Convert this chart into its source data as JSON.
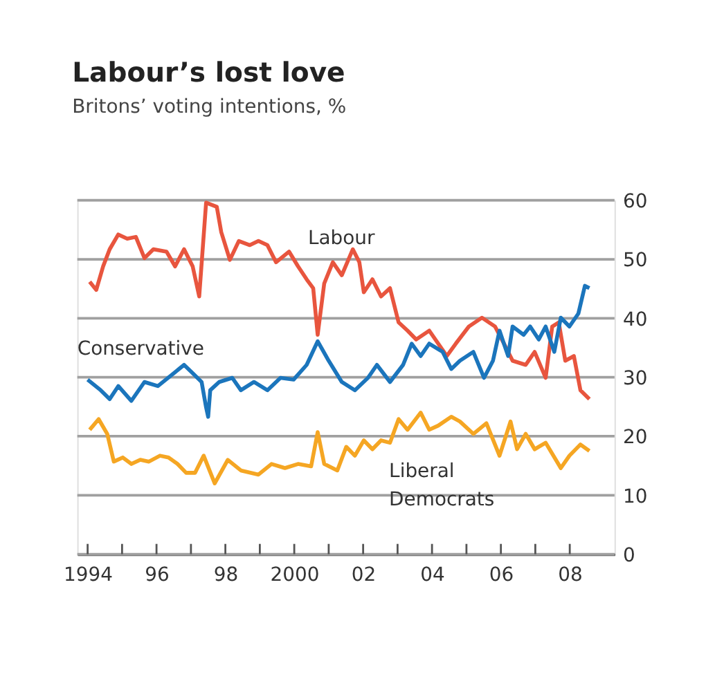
{
  "chart_data": {
    "type": "line",
    "title": "Labour’s lost love",
    "subtitle": "Britons’ voting intentions, %",
    "xlim": [
      1993.7,
      2009.3
    ],
    "xticks": [
      {
        "value": 1994,
        "label": "1994"
      },
      {
        "value": 1995,
        "label": null
      },
      {
        "value": 1996,
        "label": "96"
      },
      {
        "value": 1997,
        "label": null
      },
      {
        "value": 1998,
        "label": "98"
      },
      {
        "value": 1999,
        "label": null
      },
      {
        "value": 2000,
        "label": "2000"
      },
      {
        "value": 2001,
        "label": null
      },
      {
        "value": 2002,
        "label": "02"
      },
      {
        "value": 2003,
        "label": null
      },
      {
        "value": 2004,
        "label": "04"
      },
      {
        "value": 2005,
        "label": null
      },
      {
        "value": 2006,
        "label": "06"
      },
      {
        "value": 2007,
        "label": null
      },
      {
        "value": 2008,
        "label": "08"
      }
    ],
    "ylim": [
      0,
      60
    ],
    "yticks": [
      0,
      10,
      20,
      30,
      40,
      50,
      60
    ],
    "grid": "y",
    "legend": false,
    "line_style": "solid",
    "marker": "none",
    "series": [
      {
        "name": "Labour",
        "color": "#e8553e",
        "x": [
          1994.06,
          1994.25,
          1994.45,
          1994.64,
          1994.89,
          1995.15,
          1995.4,
          1995.65,
          1995.91,
          1996.29,
          1996.54,
          1996.8,
          1997.05,
          1997.24,
          1997.44,
          1997.75,
          1997.88,
          1998.13,
          1998.39,
          1998.71,
          1998.96,
          1999.22,
          1999.47,
          1999.85,
          2000.11,
          2000.36,
          2000.55,
          2000.68,
          2000.87,
          2001.12,
          2001.38,
          2001.7,
          2001.89,
          2002.02,
          2002.27,
          2002.52,
          2002.78,
          2003.03,
          2003.29,
          2003.54,
          2003.92,
          2004.43,
          2004.69,
          2005.07,
          2005.45,
          2005.83,
          2006.09,
          2006.34,
          2006.72,
          2006.98,
          2007.3,
          2007.49,
          2007.68,
          2007.87,
          2008.12,
          2008.31,
          2008.57
        ],
        "values": [
          46.2,
          44.8,
          48.8,
          51.7,
          54.2,
          53.5,
          53.8,
          50.2,
          51.7,
          51.3,
          48.8,
          51.7,
          48.8,
          43.7,
          59.6,
          58.9,
          54.6,
          49.9,
          53.1,
          52.4,
          53.1,
          52.4,
          49.5,
          51.3,
          48.8,
          46.6,
          45.1,
          37.2,
          45.9,
          49.5,
          47.3,
          51.7,
          49.5,
          44.4,
          46.6,
          43.7,
          45.1,
          39.3,
          37.9,
          36.4,
          37.9,
          33.6,
          35.7,
          38.6,
          40.1,
          38.6,
          35.7,
          32.8,
          32.1,
          34.3,
          29.9,
          38.6,
          39.3,
          32.8,
          33.6,
          27.8,
          26.3
        ]
      },
      {
        "name": "Conservative",
        "color": "#1b75bc",
        "x": [
          1994.0,
          1994.38,
          1994.64,
          1994.89,
          1995.27,
          1995.65,
          1996.04,
          1996.42,
          1996.8,
          1997.05,
          1997.31,
          1997.44,
          1997.5,
          1997.56,
          1997.82,
          1998.2,
          1998.45,
          1998.83,
          1999.22,
          1999.6,
          1999.98,
          2000.36,
          2000.68,
          2001.0,
          2001.38,
          2001.76,
          2002.14,
          2002.4,
          2002.78,
          2003.16,
          2003.41,
          2003.67,
          2003.92,
          2004.31,
          2004.56,
          2004.81,
          2005.2,
          2005.51,
          2005.77,
          2005.96,
          2006.21,
          2006.34,
          2006.66,
          2006.85,
          2007.1,
          2007.3,
          2007.55,
          2007.74,
          2007.99,
          2008.25,
          2008.44,
          2008.57
        ],
        "values": [
          29.6,
          27.8,
          26.3,
          28.5,
          26.0,
          29.2,
          28.5,
          30.3,
          32.1,
          30.7,
          29.2,
          24.9,
          23.3,
          27.8,
          29.2,
          29.9,
          27.8,
          29.2,
          27.8,
          29.9,
          29.6,
          32.1,
          36.1,
          32.8,
          29.2,
          27.8,
          29.9,
          32.1,
          29.2,
          32.1,
          35.7,
          33.6,
          35.7,
          34.3,
          31.4,
          32.8,
          34.3,
          29.9,
          32.8,
          37.9,
          33.6,
          38.6,
          37.2,
          38.6,
          36.4,
          38.6,
          34.3,
          40.1,
          38.6,
          40.8,
          45.5,
          45.1
        ]
      },
      {
        "name": "Liberal Democrats",
        "color": "#f5a623",
        "x": [
          1994.06,
          1994.32,
          1994.57,
          1994.76,
          1995.02,
          1995.27,
          1995.53,
          1995.78,
          1996.1,
          1996.35,
          1996.61,
          1996.86,
          1997.12,
          1997.37,
          1997.69,
          1998.07,
          1998.45,
          1998.96,
          1999.34,
          1999.73,
          2000.11,
          2000.49,
          2000.68,
          2000.87,
          2001.25,
          2001.51,
          2001.76,
          2002.02,
          2002.27,
          2002.52,
          2002.78,
          2003.03,
          2003.29,
          2003.67,
          2003.92,
          2004.18,
          2004.56,
          2004.81,
          2005.2,
          2005.58,
          2005.96,
          2006.28,
          2006.47,
          2006.72,
          2006.98,
          2007.3,
          2007.74,
          2007.99,
          2008.31,
          2008.57
        ],
        "values": [
          21.1,
          22.9,
          20.4,
          15.7,
          16.4,
          15.3,
          16.0,
          15.7,
          16.7,
          16.4,
          15.3,
          13.8,
          13.8,
          16.7,
          12.0,
          16.0,
          14.2,
          13.5,
          15.3,
          14.6,
          15.3,
          14.9,
          20.7,
          15.3,
          14.2,
          18.2,
          16.7,
          19.3,
          17.8,
          19.3,
          18.9,
          22.9,
          21.1,
          24.0,
          21.1,
          21.8,
          23.3,
          22.5,
          20.4,
          22.2,
          16.7,
          22.5,
          17.8,
          20.4,
          17.8,
          18.9,
          14.6,
          16.7,
          18.6,
          17.5
        ]
      }
    ]
  }
}
